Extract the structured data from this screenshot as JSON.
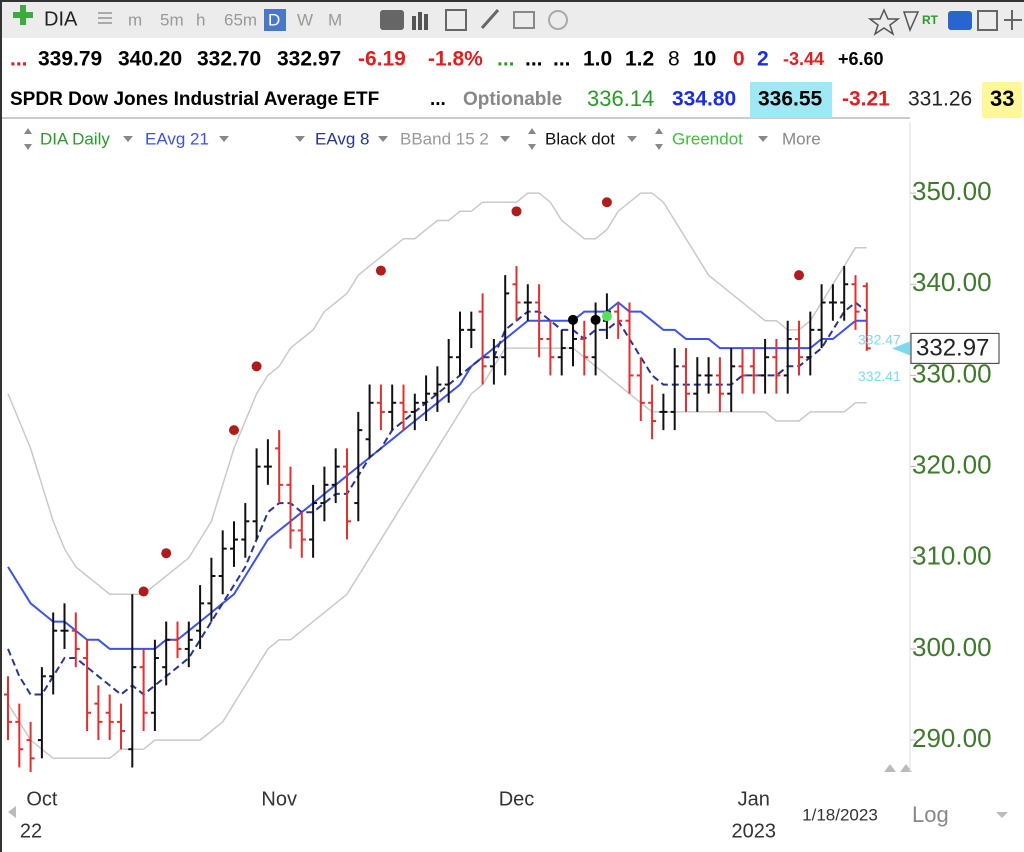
{
  "toolbar": {
    "symbol": "DIA",
    "timeframes": [
      "m",
      "5m",
      "h",
      "65m",
      "D",
      "W",
      "M"
    ],
    "more": "More"
  },
  "quote": {
    "row1": [
      {
        "text": "...",
        "color": "#d02020"
      },
      {
        "text": "339.79",
        "color": "#000"
      },
      {
        "text": "340.20",
        "color": "#000"
      },
      {
        "text": "332.70",
        "color": "#000"
      },
      {
        "text": "332.97",
        "color": "#000"
      },
      {
        "text": "-6.19",
        "color": "#e02020"
      },
      {
        "text": "-1.8%",
        "color": "#e02020"
      },
      {
        "text": "...",
        "color": "#2aa02a"
      },
      {
        "text": "...",
        "color": "#000"
      },
      {
        "text": "...",
        "color": "#000"
      },
      {
        "text": "1.0",
        "color": "#000"
      },
      {
        "text": "1.2",
        "color": "#000"
      },
      {
        "text": "8",
        "color": "#000"
      },
      {
        "text": "10",
        "color": "#000"
      },
      {
        "text": "0",
        "color": "#e02020"
      },
      {
        "text": "2",
        "color": "#1a2ee0"
      },
      {
        "text": "-3.44",
        "color": "#e02020"
      },
      {
        "text": "+6.60",
        "color": "#000"
      }
    ],
    "row2": [
      {
        "text": "SPDR Dow Jones Industrial Average ETF",
        "color": "#000"
      },
      {
        "text": "...",
        "color": "#000"
      },
      {
        "text": "Optionable",
        "color": "#888"
      },
      {
        "text": "336.14",
        "color": "#2a9a2a"
      },
      {
        "text": "334.80",
        "color": "#1a2ee0"
      },
      {
        "text": "336.55",
        "color": "#000",
        "bg": "#9fe8f5"
      },
      {
        "text": "-3.21",
        "color": "#e02020"
      },
      {
        "text": "331.26",
        "color": "#222"
      },
      {
        "text": "33",
        "color": "#000",
        "bg": "#fff79a"
      }
    ]
  },
  "chart_data": {
    "type": "ohlc",
    "price_name": "DIA Daily",
    "categories": [
      null,
      null,
      null,
      "Oct",
      null,
      null,
      null,
      null,
      null,
      null,
      null,
      null,
      null,
      null,
      null,
      null,
      null,
      null,
      null,
      null,
      null,
      null,
      null,
      null,
      "Nov",
      null,
      null,
      null,
      null,
      null,
      null,
      null,
      null,
      null,
      null,
      null,
      null,
      null,
      null,
      null,
      null,
      null,
      null,
      null,
      null,
      "Dec",
      null,
      null,
      null,
      null,
      null,
      null,
      null,
      null,
      null,
      null,
      null,
      null,
      null,
      null,
      null,
      null,
      null,
      null,
      null,
      null,
      "Jan",
      null,
      null,
      null,
      null,
      null,
      null,
      null,
      null,
      null,
      null
    ],
    "category_years": [
      null,
      null,
      null,
      "22",
      null,
      null,
      null,
      null,
      null,
      null,
      null,
      null,
      null,
      null,
      null,
      null,
      null,
      null,
      null,
      null,
      null,
      null,
      null,
      null,
      null,
      null,
      null,
      null,
      null,
      null,
      null,
      null,
      null,
      null,
      null,
      null,
      null,
      null,
      null,
      null,
      null,
      null,
      null,
      null,
      null,
      null,
      null,
      null,
      null,
      null,
      null,
      null,
      null,
      null,
      null,
      null,
      null,
      null,
      null,
      null,
      null,
      null,
      null,
      null,
      null,
      null,
      "2023",
      null,
      null,
      null,
      null,
      null,
      null,
      null,
      null,
      null,
      null
    ],
    "date_label": "1/18/2023",
    "scale_label": "Log",
    "open": [
      295,
      292,
      290,
      290,
      297,
      302,
      302,
      299,
      294,
      293,
      292,
      289,
      298,
      293,
      298,
      301,
      300,
      302,
      305,
      308,
      311,
      312,
      314,
      320,
      322,
      318,
      313,
      312,
      316,
      318,
      320,
      316,
      323,
      327,
      326,
      327,
      326,
      327,
      328,
      329,
      332,
      335,
      337,
      331,
      332,
      340,
      338,
      338,
      334,
      332,
      333,
      334,
      332,
      336,
      337,
      336,
      330,
      327,
      326,
      326,
      331,
      328,
      330,
      330,
      328,
      331,
      331,
      330,
      332,
      330,
      334,
      332,
      335,
      338,
      338,
      340,
      339.79
    ],
    "high": [
      297,
      294,
      292,
      298,
      304,
      305,
      304,
      301,
      296,
      295,
      294,
      306,
      300,
      301,
      303,
      303,
      303,
      307,
      310,
      313,
      314,
      316,
      322,
      323,
      324,
      320,
      315,
      318,
      320,
      322,
      322,
      326,
      329,
      329,
      329,
      329,
      328,
      330,
      331,
      334,
      337,
      337,
      339,
      334,
      341,
      342,
      340,
      340,
      336,
      335,
      336,
      336,
      338,
      339,
      338,
      338,
      332,
      329,
      328,
      333,
      333,
      332,
      332,
      332,
      333,
      333,
      333,
      334,
      334,
      336,
      336,
      337,
      340,
      340,
      342,
      341,
      340.2
    ],
    "low": [
      290,
      287,
      286,
      288,
      295,
      300,
      298,
      291,
      290,
      290,
      289,
      287,
      291,
      291,
      296,
      299,
      298,
      300,
      303,
      306,
      309,
      310,
      312,
      318,
      316,
      311,
      310,
      310,
      314,
      316,
      312,
      314,
      321,
      324,
      324,
      324,
      324,
      325,
      326,
      327,
      330,
      333,
      329,
      329,
      330,
      336,
      336,
      332,
      330,
      330,
      331,
      330,
      330,
      334,
      334,
      328,
      325,
      323,
      324,
      324,
      326,
      326,
      328,
      326,
      326,
      328,
      328,
      328,
      328,
      328,
      330,
      330,
      333,
      336,
      336,
      335,
      332.7
    ],
    "close": [
      292,
      289,
      288,
      297,
      302,
      302,
      300,
      293,
      292,
      292,
      291,
      298,
      293,
      299,
      301,
      300,
      301,
      305,
      308,
      311,
      312,
      314,
      320,
      320,
      318,
      313,
      312,
      316,
      318,
      320,
      314,
      324,
      327,
      326,
      327,
      326,
      327,
      328,
      329,
      332,
      335,
      335,
      331,
      332,
      339,
      338,
      338,
      334,
      332,
      333,
      334,
      332,
      336,
      337,
      336,
      330,
      327,
      325,
      326,
      331,
      328,
      330,
      330,
      328,
      331,
      330,
      330,
      332,
      330,
      334,
      332,
      335,
      338,
      338,
      340,
      337,
      332.97
    ],
    "up_color": "#111111",
    "down_color": "#e03030",
    "series": [
      {
        "name": "EAvg 21",
        "color": "#3d52e6",
        "dash": false,
        "values": [
          309,
          307,
          305,
          304,
          303,
          303,
          302,
          301,
          301,
          300,
          300,
          300,
          300,
          300,
          301,
          301,
          302,
          303,
          304,
          305,
          306,
          308,
          310,
          312,
          313,
          314,
          315,
          316,
          317,
          318,
          319,
          320,
          321,
          322,
          323,
          324,
          325,
          326,
          327,
          328,
          329,
          331,
          332,
          333,
          334,
          335,
          336,
          336,
          336,
          336,
          336,
          337,
          337,
          337,
          338,
          337,
          337,
          336,
          335,
          335,
          334,
          334,
          334,
          333,
          333,
          333,
          333,
          333,
          333,
          333,
          333,
          333,
          334,
          334,
          335,
          336,
          336
        ]
      },
      {
        "name": "EAvg 8",
        "color": "#28358f",
        "dash": true,
        "values": [
          300,
          297,
          295,
          295,
          297,
          299,
          299,
          298,
          297,
          296,
          295,
          296,
          295,
          296,
          297,
          298,
          299,
          301,
          303,
          305,
          307,
          309,
          312,
          315,
          316,
          316,
          315,
          315,
          316,
          317,
          317,
          319,
          321,
          322,
          324,
          325,
          326,
          327,
          328,
          329,
          330,
          331,
          332,
          332,
          335,
          336,
          337,
          337,
          336,
          335,
          335,
          334,
          335,
          335,
          336,
          334,
          332,
          330,
          329,
          329,
          329,
          329,
          329,
          329,
          329,
          330,
          330,
          330,
          330,
          331,
          331,
          332,
          333,
          335,
          337,
          338,
          337
        ]
      },
      {
        "name": "BBand 15 2",
        "color": "#c9c9c9",
        "dash": false,
        "upper": [
          328,
          325,
          322,
          318,
          314,
          311,
          309,
          308,
          307,
          306,
          306,
          306,
          306,
          307,
          308,
          309,
          310,
          312,
          314,
          318,
          322,
          325,
          328,
          330,
          331,
          333,
          334,
          335,
          337,
          338,
          339,
          341,
          342,
          343,
          344,
          345,
          345,
          346,
          347,
          347,
          348,
          348,
          349,
          349,
          349,
          349,
          350,
          350,
          349,
          347,
          346,
          345,
          345,
          346,
          348,
          349,
          350,
          350,
          349,
          347,
          345,
          343,
          341,
          340,
          339,
          338,
          337,
          336,
          336,
          335,
          335,
          336,
          338,
          340,
          342,
          344,
          344
        ],
        "lower": [
          294,
          292,
          290,
          289,
          288,
          288,
          288,
          288,
          288,
          288,
          289,
          289,
          289,
          290,
          290,
          290,
          290,
          290,
          291,
          292,
          294,
          296,
          298,
          300,
          301,
          301,
          302,
          303,
          304,
          305,
          306,
          308,
          310,
          312,
          314,
          316,
          318,
          320,
          322,
          324,
          326,
          328,
          329,
          331,
          333,
          333,
          333,
          333,
          333,
          333,
          333,
          332,
          331,
          330,
          329,
          328,
          327,
          326,
          326,
          326,
          326,
          326,
          326,
          326,
          326,
          326,
          326,
          326,
          325,
          325,
          325,
          326,
          326,
          326,
          326,
          327,
          327
        ]
      }
    ],
    "dots": [
      {
        "name": "Black dot",
        "color": "#000000",
        "values": [
          null,
          null,
          null,
          null,
          null,
          null,
          null,
          null,
          null,
          null,
          null,
          null,
          null,
          null,
          null,
          null,
          null,
          null,
          null,
          null,
          null,
          null,
          null,
          null,
          null,
          null,
          null,
          null,
          null,
          null,
          null,
          null,
          null,
          null,
          null,
          null,
          null,
          null,
          null,
          null,
          null,
          null,
          null,
          null,
          null,
          null,
          null,
          null,
          null,
          null,
          336.1,
          null,
          336.1,
          null,
          null,
          null,
          null,
          null,
          null,
          null,
          null,
          null,
          null,
          null,
          null,
          null,
          null,
          null,
          null,
          null,
          null,
          null,
          null,
          null,
          null,
          null,
          null
        ]
      },
      {
        "name": "Greendot",
        "color": "#55e055",
        "values": [
          null,
          null,
          null,
          null,
          null,
          null,
          null,
          null,
          null,
          null,
          null,
          null,
          null,
          null,
          null,
          null,
          null,
          null,
          null,
          null,
          null,
          null,
          null,
          null,
          null,
          null,
          null,
          null,
          null,
          null,
          null,
          null,
          null,
          null,
          null,
          null,
          null,
          null,
          null,
          null,
          null,
          null,
          null,
          null,
          null,
          null,
          null,
          null,
          null,
          null,
          null,
          null,
          null,
          336.5,
          null,
          null,
          null,
          null,
          null,
          null,
          null,
          null,
          null,
          null,
          null,
          null,
          null,
          null,
          null,
          null,
          null,
          null,
          null,
          null,
          null,
          null,
          null
        ]
      },
      {
        "color": "#b01c1c",
        "values": [
          null,
          null,
          null,
          null,
          null,
          null,
          null,
          null,
          null,
          null,
          null,
          null,
          306.3,
          null,
          310.5,
          null,
          null,
          null,
          null,
          null,
          324,
          null,
          331,
          null,
          null,
          null,
          null,
          null,
          null,
          null,
          null,
          null,
          null,
          341.5,
          null,
          null,
          null,
          null,
          null,
          null,
          null,
          null,
          null,
          null,
          null,
          348,
          null,
          null,
          null,
          null,
          null,
          null,
          null,
          349,
          null,
          null,
          null,
          null,
          null,
          null,
          null,
          null,
          null,
          null,
          null,
          null,
          null,
          null,
          null,
          null,
          341,
          null,
          null,
          null,
          null,
          null,
          null
        ]
      }
    ],
    "band_labels": [
      332.47,
      332.41
    ],
    "ylim": [
      286.5,
      357.8
    ],
    "yticks": [
      {
        "value": 290,
        "label": "290.00"
      },
      {
        "value": 300,
        "label": "300.00"
      },
      {
        "value": 310,
        "label": "310.00"
      },
      {
        "value": 320,
        "label": "320.00"
      },
      {
        "value": 330,
        "label": "330.00"
      },
      {
        "value": 340,
        "label": "340.00"
      },
      {
        "value": 350,
        "label": "350.00"
      }
    ]
  }
}
